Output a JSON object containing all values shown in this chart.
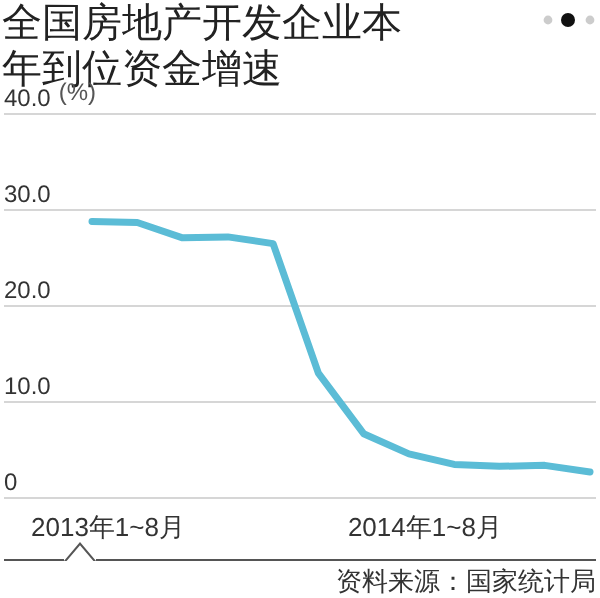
{
  "chart_data": {
    "type": "line",
    "title": "全国房地产开发企业本年到位资金增速",
    "ylabel": "(%)",
    "categories": [
      "2013年1~8月",
      null,
      null,
      null,
      null,
      null,
      null,
      "2014年1~8月",
      null,
      null,
      null,
      null
    ],
    "series": [
      {
        "color": "#5bbcd6",
        "values": [
          28.8,
          28.7,
          27.1,
          27.2,
          26.5,
          13.0,
          6.7,
          4.6,
          3.5,
          3.3,
          3.4,
          2.7
        ]
      }
    ],
    "ylim": [
      0,
      40
    ],
    "yticks": [
      0,
      {
        "value": 10,
        "label": "10.0"
      },
      {
        "value": 20,
        "label": "20.0"
      },
      {
        "value": 30,
        "label": "30.0"
      },
      {
        "value": 40,
        "label": "40.0"
      }
    ],
    "grid": "y",
    "marker": "none",
    "line_style": "solid",
    "annotations": [
      "资料来源：国家统计局"
    ]
  }
}
